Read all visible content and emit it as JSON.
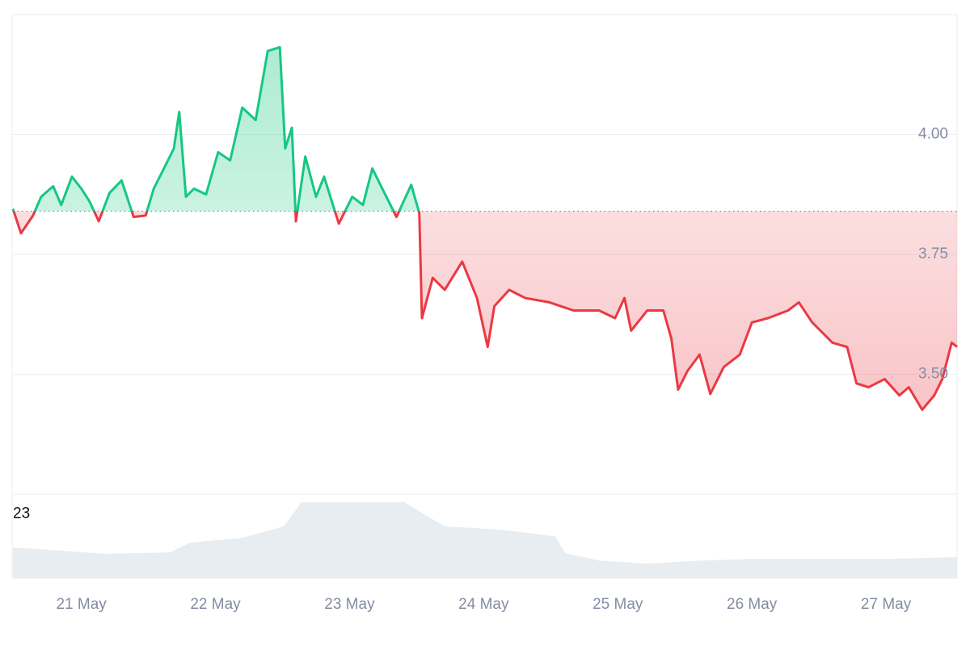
{
  "chart_data": {
    "type": "line",
    "x": [
      20.49,
      20.55,
      20.64,
      20.7,
      20.79,
      20.85,
      20.93,
      21.0,
      21.06,
      21.13,
      21.21,
      21.3,
      21.39,
      21.48,
      21.54,
      21.63,
      21.69,
      21.73,
      21.78,
      21.84,
      21.93,
      22.02,
      22.11,
      22.2,
      22.3,
      22.39,
      22.48,
      22.52,
      22.57,
      22.6,
      22.67,
      22.75,
      22.81,
      22.92,
      23.02,
      23.1,
      23.17,
      23.26,
      23.35,
      23.46,
      23.52,
      23.54,
      23.62,
      23.71,
      23.84,
      23.95,
      24.03,
      24.08,
      24.19,
      24.31,
      24.49,
      24.67,
      24.86,
      24.98,
      25.05,
      25.1,
      25.22,
      25.34,
      25.4,
      25.45,
      25.52,
      25.61,
      25.69,
      25.79,
      25.91,
      26.0,
      26.12,
      26.27,
      26.35,
      26.45,
      26.6,
      26.71,
      26.78,
      26.87,
      26.99,
      27.1,
      27.17,
      27.27,
      27.36,
      27.42,
      27.49,
      27.53
    ],
    "series": [
      {
        "values": [
          3.845,
          3.794,
          3.831,
          3.87,
          3.892,
          3.853,
          3.912,
          3.887,
          3.861,
          3.819,
          3.878,
          3.904,
          3.828,
          3.831,
          3.887,
          3.937,
          3.971,
          4.047,
          3.87,
          3.887,
          3.875,
          3.963,
          3.946,
          4.056,
          4.03,
          4.174,
          4.182,
          3.971,
          4.014,
          3.819,
          3.954,
          3.87,
          3.912,
          3.814,
          3.87,
          3.853,
          3.929,
          3.878,
          3.828,
          3.895,
          3.836,
          3.617,
          3.701,
          3.676,
          3.735,
          3.659,
          3.557,
          3.642,
          3.676,
          3.659,
          3.65,
          3.633,
          3.633,
          3.617,
          3.659,
          3.591,
          3.633,
          3.633,
          3.574,
          3.468,
          3.507,
          3.541,
          3.459,
          3.515,
          3.541,
          3.608,
          3.617,
          3.633,
          3.65,
          3.608,
          3.566,
          3.557,
          3.481,
          3.473,
          3.49,
          3.456,
          3.473,
          3.426,
          3.456,
          3.49,
          3.566,
          3.557
        ]
      }
    ],
    "baseline": 3.84,
    "up_color": "#16c784",
    "down_color": "#ea3943",
    "xlim": [
      20.49,
      27.53
    ],
    "xticks": [
      {
        "value": 21,
        "label": "21 May"
      },
      {
        "value": 22,
        "label": "22 May"
      },
      {
        "value": 23,
        "label": "23 May"
      },
      {
        "value": 24,
        "label": "24 May"
      },
      {
        "value": 25,
        "label": "25 May"
      },
      {
        "value": 26,
        "label": "26 May"
      },
      {
        "value": 27,
        "label": "27 May"
      }
    ],
    "ylim": [
      3.25,
      4.25
    ],
    "yticks": [
      {
        "value": 3.5,
        "label": "3.50"
      },
      {
        "value": 3.75,
        "label": "3.75"
      },
      {
        "value": 4,
        "label": "4.00"
      }
    ],
    "volume": {
      "x": [
        20.49,
        21.18,
        21.66,
        21.81,
        22.2,
        22.51,
        22.64,
        22.93,
        23.41,
        23.59,
        23.71,
        24.13,
        24.53,
        24.61,
        24.86,
        25.22,
        25.64,
        26.0,
        27.02,
        27.53
      ],
      "values": [
        11.0,
        8.7,
        9.2,
        12.7,
        14.4,
        18.5,
        27.1,
        27.1,
        27.1,
        21.9,
        18.5,
        17.3,
        15.0,
        8.9,
        6.3,
        5.2,
        6.3,
        6.9,
        6.9,
        7.5
      ],
      "ylim": [
        0,
        30
      ],
      "yticks": [
        23
      ],
      "color": "#e8edf1"
    }
  }
}
